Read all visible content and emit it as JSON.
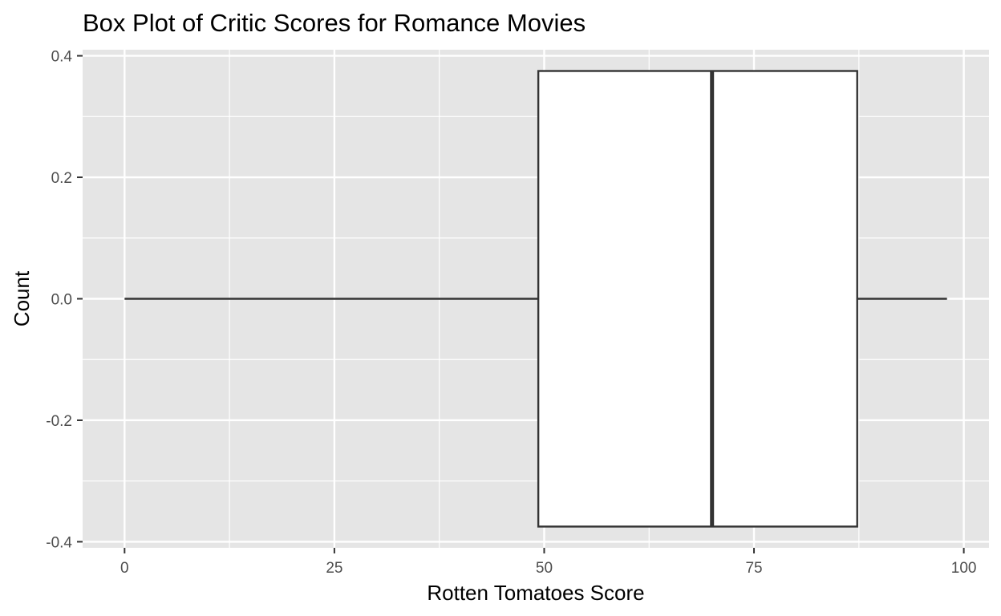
{
  "chart_data": {
    "type": "boxplot",
    "title": "Box Plot of Critic Scores for Romance Movies",
    "xlabel": "Rotten Tomatoes Score",
    "ylabel": "Count",
    "xlim": [
      -5,
      103
    ],
    "ylim": [
      -0.41,
      0.41
    ],
    "x_ticks": [
      {
        "value": 0,
        "label": "0"
      },
      {
        "value": 25,
        "label": "25"
      },
      {
        "value": 50,
        "label": "50"
      },
      {
        "value": 75,
        "label": "75"
      },
      {
        "value": 100,
        "label": "100"
      }
    ],
    "y_ticks": [
      {
        "value": 0.4,
        "label": "0.4"
      },
      {
        "value": 0.2,
        "label": "0.2"
      },
      {
        "value": 0.0,
        "label": "0.0"
      },
      {
        "value": -0.2,
        "label": "-0.2"
      },
      {
        "value": -0.4,
        "label": "-0.4"
      }
    ],
    "grid": true,
    "box": {
      "min": 0,
      "q1": 49.3,
      "median": 70,
      "q3": 87.3,
      "max": 98,
      "y_center": 0.0,
      "y_top": 0.375,
      "y_bottom": -0.375,
      "fill": "#ffffff",
      "stroke": "#333333"
    },
    "panel_background": "#e5e5e5",
    "grid_color": "#ffffff"
  }
}
